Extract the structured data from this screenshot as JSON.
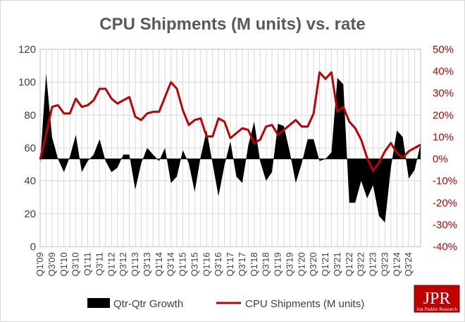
{
  "chart_data": {
    "type": "area+line",
    "title": "CPU Shipments (M units) vs. rate",
    "left_axis": {
      "ylim": [
        0,
        120
      ],
      "ticks": [
        0,
        20,
        40,
        60,
        80,
        100,
        120
      ],
      "tick_labels": [
        "0",
        "20",
        "40",
        "60",
        "80",
        "100",
        "120"
      ]
    },
    "right_axis": {
      "ylim": [
        -40,
        50
      ],
      "ticks": [
        -40,
        -30,
        -20,
        -10,
        0,
        10,
        20,
        30,
        40,
        50
      ],
      "tick_labels": [
        "-40%",
        "-30%",
        "-20%",
        "-10%",
        "0%",
        "10%",
        "20%",
        "30%",
        "40%",
        "50%"
      ],
      "color": "#c00000"
    },
    "x_tick_labels": [
      "Q1'09",
      "Q3'09",
      "Q1'10",
      "Q3'10",
      "Q1'11",
      "Q3'11",
      "Q1'12",
      "Q3'12",
      "Q1'13",
      "Q3'13",
      "Q1'14",
      "Q3'14",
      "Q1'15",
      "Q3'15",
      "Q1'16",
      "Q3'16",
      "Q1'17",
      "Q3'17",
      "Q1'18",
      "Q3'18",
      "Q1'19",
      "Q3'19",
      "Q1'20",
      "Q3'20",
      "Q1'21",
      "Q3'21",
      "Q1'22",
      "Q3'22",
      "Q1'23",
      "Q3'23",
      "Q1'24",
      "Q3'24"
    ],
    "grid": true,
    "legend_position": "bottom",
    "series": [
      {
        "name": "Qtr-Qtr Growth",
        "type": "area",
        "axis": "right",
        "color": "#000000",
        "values": [
          -2,
          39,
          10,
          0,
          -6,
          1,
          11,
          -6,
          -1,
          2,
          9,
          -1,
          -6,
          -4,
          2,
          2,
          -14,
          -2,
          5,
          2,
          -1,
          5,
          -11,
          -8,
          4,
          -2,
          -15,
          1,
          13,
          -2,
          -17,
          -3,
          8,
          -8,
          -11,
          6,
          17,
          -1,
          -10,
          -6,
          16,
          15,
          3,
          -11,
          -2,
          9,
          9,
          -1,
          0,
          3,
          37,
          34,
          -20,
          -20,
          -10,
          -18,
          -12,
          -26,
          -29,
          -4,
          13,
          10,
          -9,
          -5,
          7
        ]
      },
      {
        "name": "CPU Shipments (M units)",
        "type": "line",
        "axis": "left",
        "color": "#c00000",
        "values": [
          53,
          68,
          85,
          86,
          81,
          81,
          90,
          85,
          86,
          89,
          96,
          96,
          90,
          87,
          89,
          91,
          79,
          77,
          81,
          82,
          82,
          91,
          100,
          96,
          83,
          74,
          77,
          78,
          67,
          67,
          78,
          76,
          66,
          69,
          72,
          71,
          63,
          65,
          73,
          74,
          68,
          71,
          74,
          77,
          73,
          73,
          81,
          106,
          102,
          106,
          82,
          85,
          76,
          72,
          65,
          54,
          46,
          51,
          58,
          63,
          57,
          54,
          58,
          60,
          62
        ]
      }
    ]
  },
  "legend": {
    "growth_label": "Qtr-Qtr Growth",
    "shipments_label": "CPU Shipments (M units)"
  },
  "logo": {
    "text": "JPR",
    "subtext": "Jon Peddie Research"
  }
}
